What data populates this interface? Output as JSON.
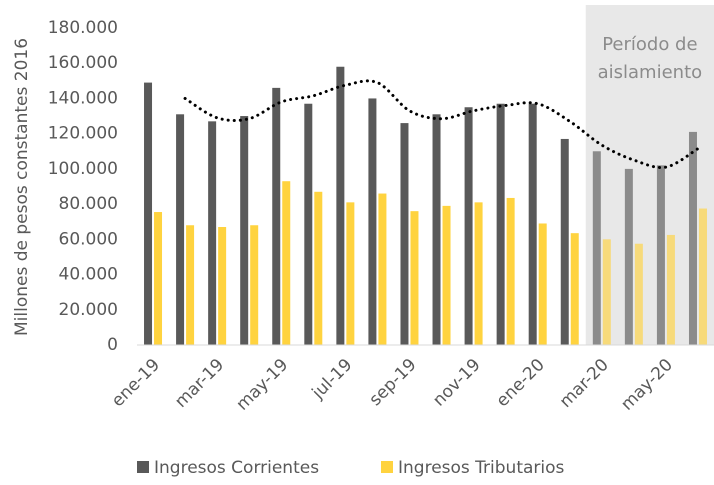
{
  "chart_data": {
    "type": "bar",
    "y_axis_label": "Millones de pesos constantes 2016",
    "categories": [
      "ene-19",
      null,
      "mar-19",
      null,
      "may-19",
      null,
      "jul-19",
      null,
      "sep-19",
      null,
      "nov-19",
      null,
      "ene-20",
      null,
      "mar-20",
      null,
      "may-20",
      null
    ],
    "series": [
      {
        "name": "Ingresos Corrientes",
        "color": "#595959",
        "values": [
          149000,
          131000,
          127000,
          130000,
          146000,
          137000,
          158000,
          140000,
          126000,
          131000,
          135000,
          137000,
          137000,
          117000,
          110000,
          100000,
          102000,
          121000
        ]
      },
      {
        "name": "Ingresos Tributarios",
        "color": "#ffd33f",
        "values": [
          75500,
          68000,
          67000,
          68000,
          93000,
          87000,
          81000,
          86000,
          76000,
          79000,
          81000,
          83500,
          69000,
          63500,
          60000,
          57500,
          62500,
          77500
        ]
      }
    ],
    "trendline": {
      "color": "#000000",
      "values": [
        null,
        140000,
        129000,
        128500,
        138000,
        141500,
        147500,
        149000,
        133000,
        128500,
        133000,
        136000,
        137000,
        127000,
        113500,
        105000,
        101000,
        111500
      ]
    },
    "region": {
      "start": "mar-20",
      "label_lines": [
        "Período de",
        "aislamiento"
      ],
      "color": "#e8e8e8"
    },
    "ylim": [
      0,
      180000
    ],
    "yticks": [
      0,
      {
        "value": 20000,
        "label": "20.000"
      },
      {
        "value": 40000,
        "label": "40.000"
      },
      {
        "value": 60000,
        "label": "60.000"
      },
      {
        "value": 80000,
        "label": "80.000"
      },
      {
        "value": 100000,
        "label": "100.000"
      },
      {
        "value": 120000,
        "label": "120.000"
      },
      {
        "value": 140000,
        "label": "140.000"
      },
      {
        "value": 160000,
        "label": "160.000"
      },
      {
        "value": 180000,
        "label": "180.000"
      }
    ],
    "legend": "bottom"
  }
}
